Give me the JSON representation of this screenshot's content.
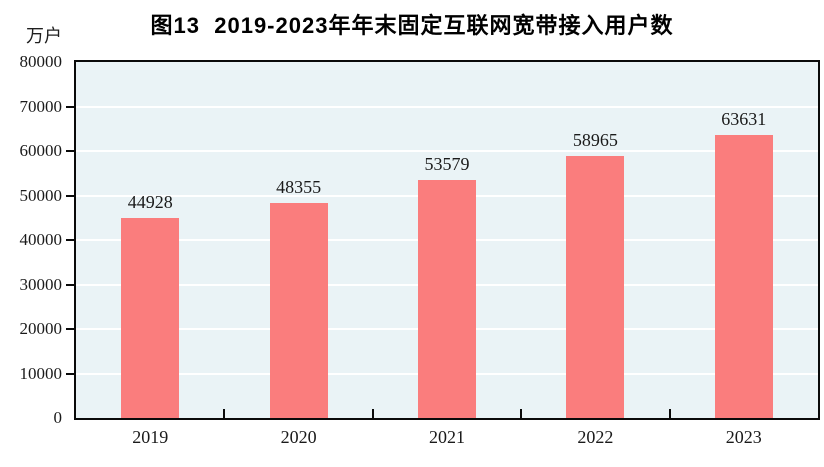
{
  "chart_data": {
    "type": "bar",
    "title": "图13  2019-2023年年末固定互联网宽带接入用户数",
    "unit": "万户",
    "categories": [
      "2019",
      "2020",
      "2021",
      "2022",
      "2023"
    ],
    "values": [
      44928,
      48355,
      53579,
      58965,
      63631
    ],
    "value_labels": [
      "44928",
      "48355",
      "53579",
      "58965",
      "63631"
    ],
    "xlabel": "",
    "ylabel": "万户",
    "ylim": [
      0,
      80000
    ],
    "ytick_step": 10000,
    "yticks": [
      0,
      10000,
      20000,
      30000,
      40000,
      50000,
      60000,
      70000,
      80000
    ],
    "grid": true,
    "legend": "none",
    "colors": {
      "bar": "#fa7d7d",
      "plot_background": "#eaf3f6",
      "gridline": "#ffffff",
      "axis": "#0a0a0a",
      "text": "#1a1a1a"
    }
  }
}
